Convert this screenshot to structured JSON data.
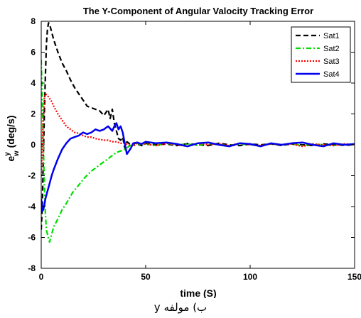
{
  "chart_data": {
    "type": "line",
    "title": "The Y-Component of Angular Valocity Tracking Error",
    "xlabel": "time (S)",
    "ylabel_base": "e",
    "ylabel_sup": "y",
    "ylabel_sub": "w",
    "ylabel_unit": "(deg/s)",
    "xlim": [
      0,
      150
    ],
    "ylim": [
      -8,
      8
    ],
    "xticks": [
      0,
      50,
      100,
      150
    ],
    "yticks": [
      -8,
      -6,
      -4,
      -2,
      0,
      2,
      4,
      6,
      8
    ],
    "grid": false,
    "legend_position": "top-right",
    "series": [
      {
        "name": "Sat1",
        "color": "#000000",
        "style": "dashed",
        "x": [
          0,
          0.5,
          1,
          1.5,
          2,
          2.5,
          3,
          3.5,
          4,
          5,
          6,
          8,
          10,
          12,
          14,
          16,
          18,
          20,
          22,
          24,
          26,
          28,
          30,
          32,
          33,
          34,
          35,
          36,
          37,
          38,
          39,
          40,
          41,
          42,
          43,
          45,
          48,
          50,
          55,
          60,
          65,
          70,
          75,
          80,
          85,
          90,
          95,
          100,
          105,
          110,
          115,
          120,
          125,
          130,
          135,
          140,
          145,
          150
        ],
        "y": [
          -5.5,
          -4,
          -1,
          2,
          4.5,
          6.5,
          7.5,
          7.9,
          7.8,
          7.3,
          6.8,
          6,
          5.3,
          4.8,
          4.2,
          3.7,
          3.3,
          2.9,
          2.5,
          2.4,
          2.3,
          2.2,
          1.9,
          2.3,
          1.7,
          2.3,
          1.4,
          0.9,
          0.4,
          0.3,
          0.5,
          -0.2,
          0.2,
          0.1,
          -0.1,
          0.1,
          -0.05,
          0.1,
          0,
          0.05,
          -0.05,
          0.08,
          0,
          -0.05,
          0.1,
          0,
          -0.05,
          0.05,
          0,
          0.06,
          -0.04,
          0.05,
          0,
          -0.05,
          0.05,
          0.02,
          -0.03,
          0
        ]
      },
      {
        "name": "Sat2",
        "color": "#00dd00",
        "style": "dashdot",
        "x": [
          0,
          0.5,
          1,
          1.5,
          2,
          2.5,
          3,
          3.5,
          4,
          5,
          6,
          8,
          10,
          12,
          15,
          18,
          21,
          24,
          27,
          30,
          33,
          36,
          38,
          40,
          42,
          44,
          46,
          48,
          50,
          55,
          60,
          65,
          70,
          75,
          80,
          85,
          90,
          95,
          100,
          105,
          110,
          115,
          120,
          125,
          130,
          135,
          140,
          145,
          150
        ],
        "y": [
          5.5,
          3,
          0,
          -2.5,
          -4.5,
          -5.5,
          -5.8,
          -6.1,
          -6.3,
          -5.8,
          -5.3,
          -4.8,
          -4.2,
          -3.8,
          -3.1,
          -2.6,
          -2.1,
          -1.7,
          -1.4,
          -1.1,
          -0.8,
          -0.5,
          -0.4,
          -0.3,
          -0.1,
          0.05,
          0.1,
          0,
          0.05,
          -0.05,
          0.1,
          0,
          0.05,
          -0.05,
          0.1,
          0,
          -0.05,
          0.05,
          0,
          -0.05,
          0.05,
          0,
          0.05,
          -0.05,
          0.05,
          0,
          -0.05,
          0.05,
          0
        ]
      },
      {
        "name": "Sat3",
        "color": "#ff0000",
        "style": "dotted",
        "x": [
          0,
          0.5,
          1,
          1.5,
          2,
          3,
          4,
          5,
          6,
          8,
          10,
          12,
          14,
          16,
          18,
          20,
          22,
          24,
          26,
          28,
          30,
          32,
          34,
          36,
          38,
          40,
          42,
          44,
          46,
          50,
          55,
          60,
          65,
          70,
          75,
          80,
          85,
          90,
          95,
          100,
          105,
          110,
          115,
          120,
          125,
          130,
          135,
          140,
          145,
          150
        ],
        "y": [
          -2,
          0,
          1.8,
          3.0,
          3.3,
          3.2,
          3.0,
          2.8,
          2.5,
          2.0,
          1.6,
          1.2,
          1.0,
          0.8,
          0.75,
          0.6,
          0.5,
          0.5,
          0.4,
          0.35,
          0.3,
          0.3,
          0.2,
          0.2,
          0.1,
          0.1,
          0,
          -0.1,
          0.1,
          0.05,
          -0.05,
          0.1,
          0,
          -0.1,
          0.1,
          0,
          0.05,
          -0.05,
          0.1,
          0,
          -0.05,
          0.05,
          0,
          0.05,
          -0.1,
          0.05,
          0,
          -0.05,
          0.05,
          0
        ]
      },
      {
        "name": "Sat4",
        "color": "#0000ee",
        "style": "solid",
        "x": [
          0,
          0.5,
          1,
          1.5,
          2,
          3,
          4,
          5,
          6,
          8,
          10,
          12,
          14,
          16,
          18,
          20,
          22,
          24,
          26,
          28,
          30,
          32,
          34,
          35,
          36,
          37,
          38,
          39,
          40,
          41,
          42,
          43,
          44,
          46,
          48,
          50,
          55,
          60,
          65,
          70,
          75,
          80,
          85,
          90,
          95,
          100,
          105,
          110,
          115,
          120,
          125,
          130,
          135,
          140,
          145,
          150
        ],
        "y": [
          -3.5,
          -4.3,
          -4.2,
          -3.9,
          -3.5,
          -3.0,
          -2.5,
          -2.0,
          -1.6,
          -0.9,
          -0.3,
          0.1,
          0.4,
          0.5,
          0.6,
          0.8,
          0.7,
          0.8,
          1.0,
          0.9,
          1.0,
          1.2,
          0.9,
          1.2,
          1.4,
          1.0,
          1.2,
          0.8,
          0.1,
          -0.6,
          -0.4,
          -0.2,
          0.1,
          0.15,
          0.05,
          0.2,
          0.1,
          0.15,
          0.05,
          -0.1,
          0.1,
          0.15,
          0,
          -0.1,
          0.1,
          0.05,
          -0.1,
          0.1,
          0,
          0.1,
          0.15,
          0,
          -0.1,
          0.1,
          0,
          0.05
        ]
      }
    ]
  },
  "caption": "ب) مولفه y"
}
